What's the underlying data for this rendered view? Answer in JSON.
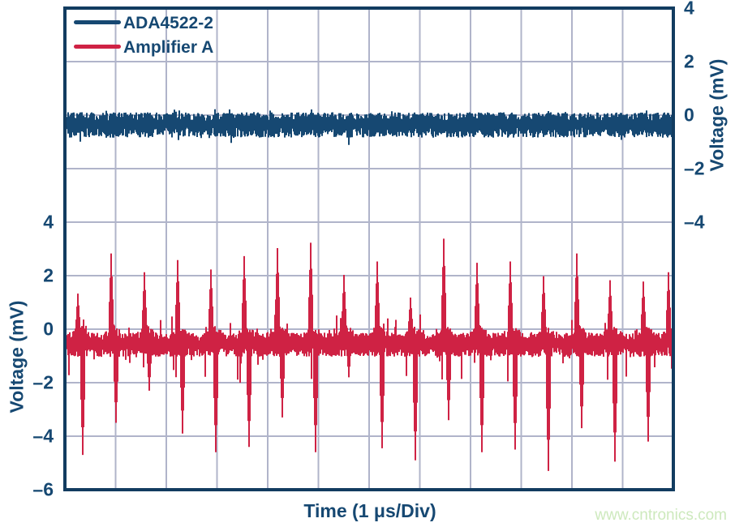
{
  "colors": {
    "navy": "#164872",
    "frame": "#123c60",
    "crimson": "#cf2244",
    "grid": "#b0b4ca",
    "watermark_green": "#cde9bd",
    "background": "#ffffff"
  },
  "legend": {
    "items": [
      {
        "label": "ADA4522-2",
        "color": "#164872"
      },
      {
        "label": "Amplifier A",
        "color": "#cf2244"
      }
    ]
  },
  "axes": {
    "left": {
      "title": "Voltage (mV)",
      "ticks": [
        "4",
        "2",
        "0",
        "–2",
        "–4",
        "–6"
      ]
    },
    "right": {
      "title": "Voltage (mV)",
      "ticks": [
        "4",
        "2",
        "0",
        "–2",
        "–4"
      ]
    },
    "x": {
      "title": "Time (1 μs/Div)"
    }
  },
  "watermark": "www.cntronics.com",
  "chart_data": {
    "type": "line",
    "title": "",
    "xlabel": "Time (1 μs/Div)",
    "x_divisions": 12,
    "us_per_div": 1,
    "grid": {
      "cols": 12,
      "rows": 9,
      "mv_per_div": 2,
      "grid_on": true
    },
    "right_axis": {
      "label": "Voltage (mV)",
      "labeled_range": [
        -4,
        4
      ],
      "zero_row": 2
    },
    "left_axis": {
      "label": "Voltage (mV)",
      "labeled_range": [
        -6,
        4
      ],
      "zero_row": 6
    },
    "legend_position": "top-left",
    "series": [
      {
        "name": "ADA4522-2",
        "axis": "right",
        "color": "#164872",
        "kind": "noise-band",
        "baseline_mv": -0.33,
        "noise_pp_mv": 0.75,
        "peak_excursion_mv": [
          0.25,
          -1.0
        ],
        "description": "flat broadband noise band, no switching spikes"
      },
      {
        "name": "Amplifier A",
        "axis": "left",
        "color": "#cf2244",
        "kind": "noise-band-with-spikes",
        "baseline_mv": -0.55,
        "noise_pp_mv": 0.7,
        "spike_period_us": 0.65,
        "spikes": [
          {
            "x_div": 0.26,
            "up_mv": 1.1,
            "down_mv": -4.7
          },
          {
            "x_div": 0.91,
            "up_mv": 2.6,
            "down_mv": -3.5
          },
          {
            "x_div": 1.57,
            "up_mv": 1.9,
            "down_mv": -2.3
          },
          {
            "x_div": 2.22,
            "up_mv": 2.35,
            "down_mv": -3.9
          },
          {
            "x_div": 2.88,
            "up_mv": 2.0,
            "down_mv": -4.6
          },
          {
            "x_div": 3.54,
            "up_mv": 2.5,
            "down_mv": -4.4
          },
          {
            "x_div": 4.19,
            "up_mv": 2.8,
            "down_mv": -3.3
          },
          {
            "x_div": 4.85,
            "up_mv": 3.0,
            "down_mv": -4.6
          },
          {
            "x_div": 5.5,
            "up_mv": 1.8,
            "down_mv": -1.8
          },
          {
            "x_div": 6.16,
            "up_mv": 2.3,
            "down_mv": -4.45
          },
          {
            "x_div": 6.82,
            "up_mv": 0.95,
            "down_mv": -4.9
          },
          {
            "x_div": 7.47,
            "up_mv": 3.15,
            "down_mv": -3.4
          },
          {
            "x_div": 8.13,
            "up_mv": 2.25,
            "down_mv": -4.6
          },
          {
            "x_div": 8.78,
            "up_mv": 2.3,
            "down_mv": -4.5
          },
          {
            "x_div": 9.44,
            "up_mv": 1.75,
            "down_mv": -5.3
          },
          {
            "x_div": 10.1,
            "up_mv": 2.6,
            "down_mv": -3.7
          },
          {
            "x_div": 10.75,
            "up_mv": 1.6,
            "down_mv": -4.95
          },
          {
            "x_div": 11.41,
            "up_mv": 1.55,
            "down_mv": -4.2
          },
          {
            "x_div": 11.9,
            "up_mv": 1.9,
            "down_mv": -2.0
          }
        ]
      }
    ]
  }
}
